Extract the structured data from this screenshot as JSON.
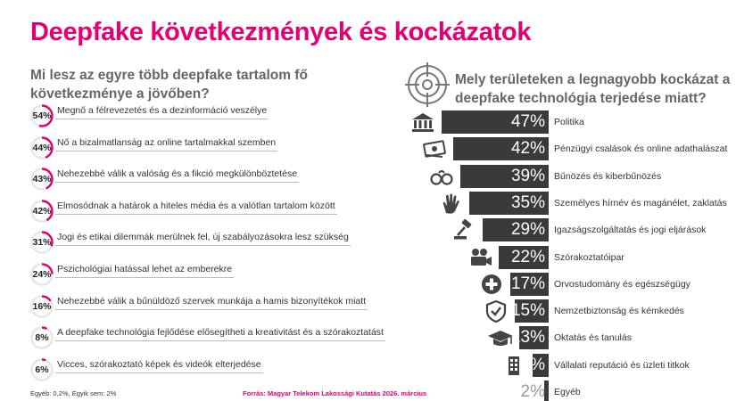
{
  "title": "Deepfake következmények és kockázatok",
  "left_question": "Mi lesz az egyre több deepfake tartalom fő következménye a jövőben?",
  "right_question": "Mely területeken a legnagyobb kockázat a deepfake technológia terjedése miatt?",
  "footnote_left": "Egyéb: 0,2%, Egyik sem: 2%",
  "source": "Forrás:  Magyar Telekom Lakossági Kutatás 2026. március",
  "colors": {
    "accent": "#e20074",
    "bar": "#3a3a3a",
    "ring_track": "#e6e6e6"
  },
  "chart_data": [
    {
      "type": "radial-progress-list",
      "items": [
        {
          "value": 54,
          "value_label": "54%",
          "label": "Megnő a félrevezetés és a dezinformáció veszélye"
        },
        {
          "value": 44,
          "value_label": "44%",
          "label": "Nő a bizalmatlanság az online tartalmakkal szemben"
        },
        {
          "value": 43,
          "value_label": "43%",
          "label": "Nehezebbé válik a valóság és a fikció megkülönböztetése"
        },
        {
          "value": 42,
          "value_label": "42%",
          "label": "Elmosódnak a határok a hiteles média és a valótlan tartalom között"
        },
        {
          "value": 31,
          "value_label": "31%",
          "label": "Jogi és etikai dilemmák merülnek fel, új szabályozásokra lesz szükség"
        },
        {
          "value": 24,
          "value_label": "24%",
          "label": "Pszichológiai hatással lehet az emberekre"
        },
        {
          "value": 16,
          "value_label": "16%",
          "label": "Nehezebbé válik a bűnüldöző szervek munkája a hamis bizonyítékok miatt"
        },
        {
          "value": 8,
          "value_label": "8%",
          "label": "A deepfake technológia fejlődése elősegítheti a kreativitást és a szórakoztatást"
        },
        {
          "value": 6,
          "value_label": "6%",
          "label": "Vicces, szórakoztató képek és videók elterjedése"
        }
      ]
    },
    {
      "type": "bar",
      "orientation": "horizontal",
      "xlim": [
        0,
        50
      ],
      "items": [
        {
          "value": 47,
          "value_label": "47%",
          "label": "Politika",
          "icon": "government-building-icon"
        },
        {
          "value": 42,
          "value_label": "42%",
          "label": "Pénzügyi csalások és online adathalászat",
          "icon": "banknote-icon"
        },
        {
          "value": 39,
          "value_label": "39%",
          "label": "Bűnözés és kiberbűnözés",
          "icon": "handcuffs-icon"
        },
        {
          "value": 35,
          "value_label": "35%",
          "label": "Személyes hírnév és magánélet, zaklatás",
          "icon": "hand-print-icon"
        },
        {
          "value": 29,
          "value_label": "29%",
          "label": "Igazságszolgáltatás és jogi eljárások",
          "icon": "gavel-icon"
        },
        {
          "value": 22,
          "value_label": "22%",
          "label": "Szórakoztatóipar",
          "icon": "movie-camera-icon"
        },
        {
          "value": 17,
          "value_label": "17%",
          "label": "Orvostudomány és egészségügy",
          "icon": "medical-cross-icon"
        },
        {
          "value": 15,
          "value_label": "15%",
          "label": "Nemzetbiztonság és kémkedés",
          "icon": "shield-check-icon"
        },
        {
          "value": 13,
          "value_label": "13%",
          "label": "Oktatás és tanulás",
          "icon": "graduation-cap-icon"
        },
        {
          "value": 7,
          "value_label": "7%",
          "label": "Vállalati reputáció és üzleti titkok",
          "icon": "office-building-icon"
        },
        {
          "value": 2,
          "value_label": "2%",
          "label": "Egyéb",
          "icon": ""
        }
      ]
    }
  ]
}
